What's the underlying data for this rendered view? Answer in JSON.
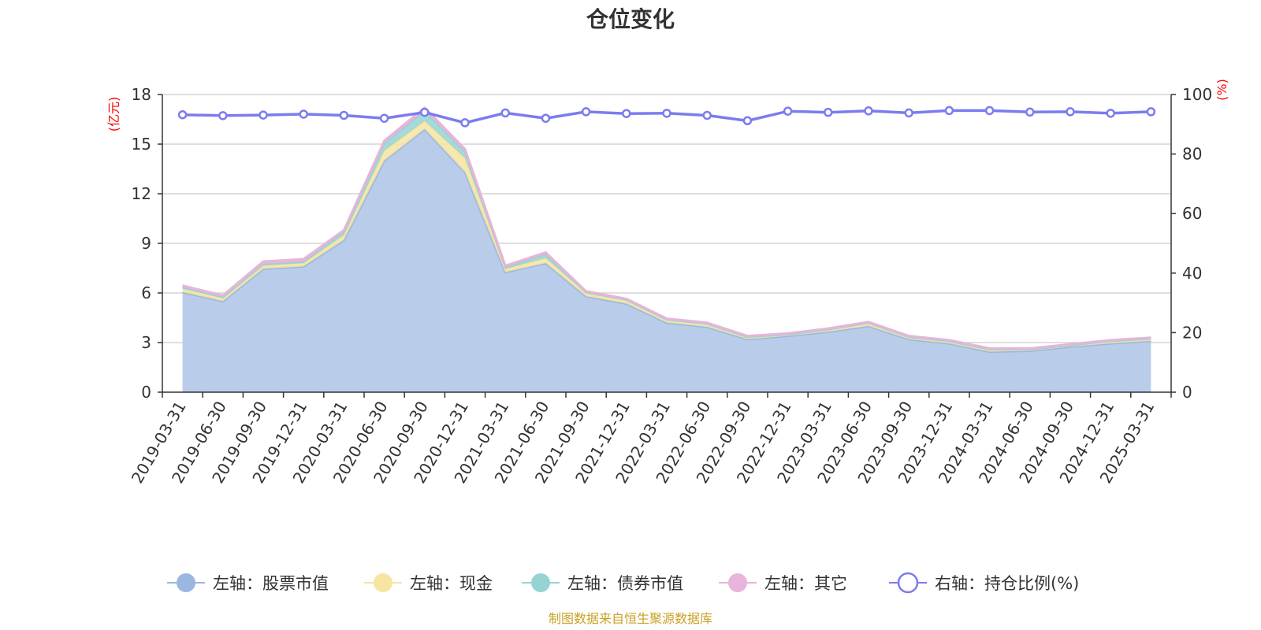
{
  "colors": {
    "stock": "#9bb7e0",
    "stock_fill": "#b9cdea",
    "cash": "#f6e4a2",
    "bond": "#97d3d3",
    "other": "#e8b4da",
    "ratio": "#7b7cee",
    "unit": "#ff0000",
    "source": "#c9a227"
  },
  "chart_data": {
    "type": "area",
    "title": "仓位变化",
    "left_axis": {
      "unit": "(亿元)",
      "ylim": [
        0,
        18
      ],
      "ticks": [
        "0",
        "3",
        "6",
        "9",
        "12",
        "15",
        "18"
      ]
    },
    "right_axis": {
      "unit": "(%)",
      "ylim": [
        0,
        100
      ],
      "ticks": [
        "0",
        "20",
        "40",
        "60",
        "80",
        "100"
      ]
    },
    "grid": true,
    "legend_position": "bottom",
    "categories": [
      "2019-03-31",
      "2019-06-30",
      "2019-09-30",
      "2019-12-31",
      "2020-03-31",
      "2020-06-30",
      "2020-09-30",
      "2020-12-31",
      "2021-03-31",
      "2021-06-30",
      "2021-09-30",
      "2021-12-31",
      "2022-03-31",
      "2022-06-30",
      "2022-09-30",
      "2022-12-31",
      "2023-03-31",
      "2023-06-30",
      "2023-09-30",
      "2023-12-31",
      "2024-03-31",
      "2024-06-30",
      "2024-09-30",
      "2024-12-31",
      "2025-03-31"
    ],
    "series": [
      {
        "name": "左轴：股票市值",
        "axis": "left",
        "stacked": true,
        "values": [
          6.05,
          5.5,
          7.45,
          7.6,
          9.2,
          14.0,
          15.9,
          13.3,
          7.25,
          7.8,
          5.8,
          5.35,
          4.2,
          3.95,
          3.2,
          3.4,
          3.65,
          4.0,
          3.2,
          2.95,
          2.45,
          2.5,
          2.75,
          2.95,
          3.1
        ]
      },
      {
        "name": "左轴：现金",
        "axis": "left",
        "stacked": true,
        "values": [
          0.2,
          0.2,
          0.2,
          0.2,
          0.3,
          0.6,
          0.5,
          0.85,
          0.2,
          0.3,
          0.2,
          0.2,
          0.2,
          0.2,
          0.15,
          0.1,
          0.15,
          0.2,
          0.15,
          0.15,
          0.15,
          0.1,
          0.1,
          0.15,
          0.15
        ]
      },
      {
        "name": "左轴：债券市值",
        "axis": "left",
        "stacked": true,
        "values": [
          0.1,
          0.05,
          0.1,
          0.1,
          0.2,
          0.45,
          0.6,
          0.4,
          0.1,
          0.25,
          0.05,
          0.05,
          0,
          0,
          0,
          0,
          0,
          0,
          0,
          0,
          0,
          0,
          0,
          0,
          0
        ]
      },
      {
        "name": "左轴：其它",
        "axis": "left",
        "stacked": true,
        "values": [
          0.1,
          0.1,
          0.15,
          0.15,
          0.1,
          0.15,
          0.2,
          0.15,
          0.1,
          0.1,
          0.05,
          0.05,
          0.05,
          0.05,
          0.05,
          0.05,
          0.05,
          0.05,
          0.05,
          0.05,
          0.05,
          0.05,
          0.05,
          0.05,
          0.05
        ]
      },
      {
        "name": "右轴：持仓比例(%)",
        "axis": "right",
        "type": "line",
        "values": [
          93.2,
          92.9,
          93.1,
          93.4,
          93.0,
          92.0,
          94.0,
          90.5,
          93.8,
          92.0,
          94.2,
          93.6,
          93.7,
          93.0,
          91.2,
          94.4,
          94.0,
          94.5,
          93.8,
          94.6,
          94.6,
          94.1,
          94.2,
          93.7,
          94.2
        ]
      }
    ],
    "source_text": "制图数据来自恒生聚源数据库"
  }
}
